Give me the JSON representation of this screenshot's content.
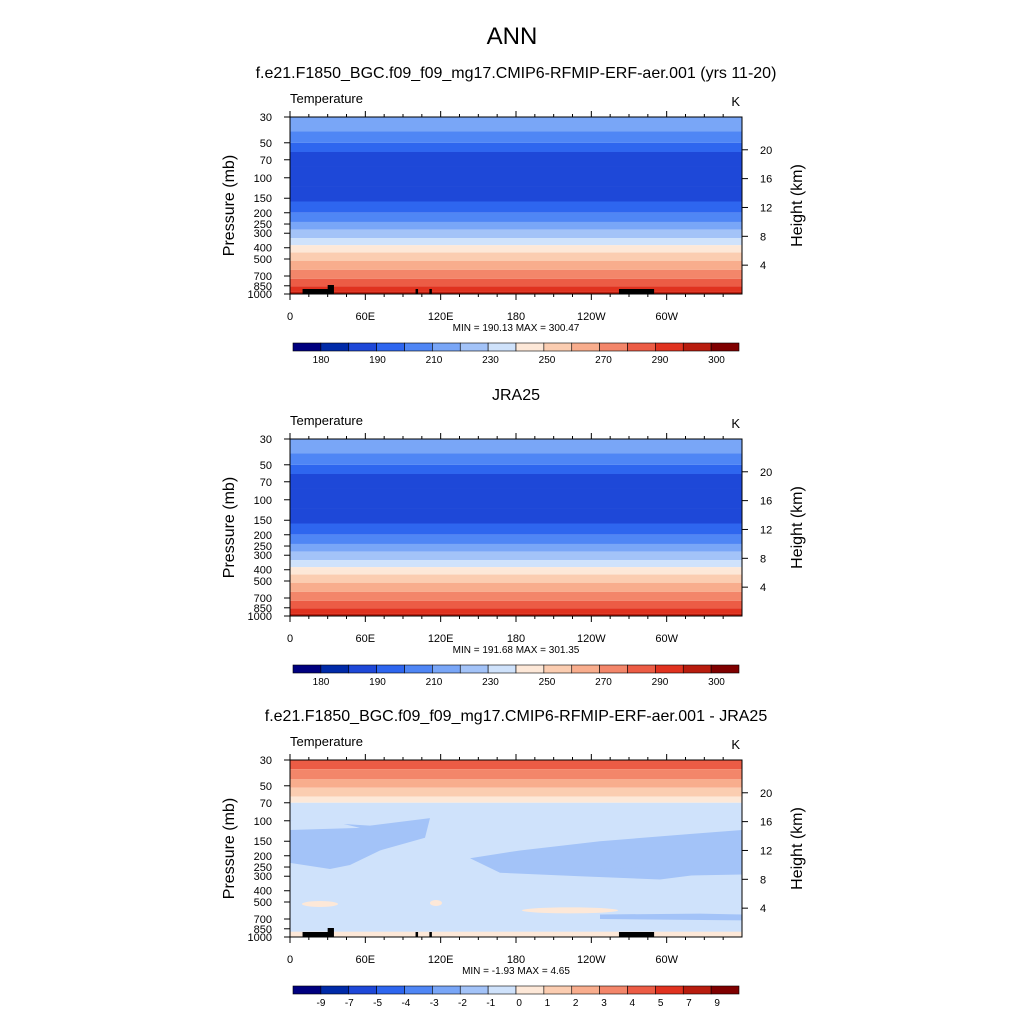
{
  "page": {
    "title": "ANN"
  },
  "colors": {
    "temp_scale": [
      "#00007f",
      "#002aa8",
      "#1e48d8",
      "#2e66ef",
      "#4f86f5",
      "#79a6f7",
      "#a3c3f8",
      "#cfe2fb",
      "#fde8d8",
      "#fbcdb1",
      "#f8ad8d",
      "#f3866a",
      "#ec5c45",
      "#e0321f",
      "#b81c0e",
      "#7f0000"
    ],
    "diff_scale": [
      "#00007f",
      "#002aa8",
      "#1e48d8",
      "#2e66ef",
      "#4f86f5",
      "#79a6f7",
      "#a3c3f8",
      "#cfe2fb",
      "#fde8d8",
      "#fbcdb1",
      "#f8ad8d",
      "#f3866a",
      "#ec5c45",
      "#e0321f",
      "#b81c0e",
      "#7f0000"
    ],
    "land": "#000000"
  },
  "chart_data": [
    {
      "type": "heatmap",
      "title": "f.e21.F1850_BGC.f09_f09_mg17.CMIP6-RFMIP-ERF-aer.001 (yrs 11-20)",
      "left_string": "Temperature",
      "right_string": "K",
      "ylabel": "Pressure (mb)",
      "ylabel_right": "Height (km)",
      "xticks": [
        "0",
        "60E",
        "120E",
        "180",
        "120W",
        "60W"
      ],
      "yticks": [
        "30",
        "50",
        "70",
        "100",
        "150",
        "200",
        "250",
        "300",
        "400",
        "500",
        "700",
        "850",
        "1000"
      ],
      "yticks_right": [
        "20",
        "16",
        "12",
        "8",
        "4"
      ],
      "stats": "MIN = 190.13  MAX = 300.47",
      "colorbar_labels": [
        "180",
        "190",
        "210",
        "230",
        "250",
        "270",
        "290",
        "300"
      ],
      "levels": [
        {
          "p": 30,
          "c": 5
        },
        {
          "p": 40,
          "c": 4
        },
        {
          "p": 50,
          "c": 3
        },
        {
          "p": 60,
          "c": 2
        },
        {
          "p": 80,
          "c": 2
        },
        {
          "p": 120,
          "c": 2
        },
        {
          "p": 160,
          "c": 3
        },
        {
          "p": 200,
          "c": 4
        },
        {
          "p": 240,
          "c": 5
        },
        {
          "p": 280,
          "c": 6
        },
        {
          "p": 330,
          "c": 7
        },
        {
          "p": 380,
          "c": 8
        },
        {
          "p": 440,
          "c": 9
        },
        {
          "p": 520,
          "c": 10
        },
        {
          "p": 620,
          "c": 11
        },
        {
          "p": 740,
          "c": 12
        },
        {
          "p": 860,
          "c": 13
        },
        {
          "p": 960,
          "c": 14
        }
      ],
      "land_blocks": [
        [
          10,
          33
        ],
        [
          30,
          35
        ],
        [
          100,
          102
        ],
        [
          111,
          113
        ],
        [
          262,
          290
        ]
      ]
    },
    {
      "type": "heatmap",
      "title": "JRA25",
      "left_string": "Temperature",
      "right_string": "K",
      "ylabel": "Pressure (mb)",
      "ylabel_right": "Height (km)",
      "xticks": [
        "0",
        "60E",
        "120E",
        "180",
        "120W",
        "60W"
      ],
      "yticks": [
        "30",
        "50",
        "70",
        "100",
        "150",
        "200",
        "250",
        "300",
        "400",
        "500",
        "700",
        "850",
        "1000"
      ],
      "yticks_right": [
        "20",
        "16",
        "12",
        "8",
        "4"
      ],
      "stats": "MIN = 191.68  MAX = 301.35",
      "colorbar_labels": [
        "180",
        "190",
        "210",
        "230",
        "250",
        "270",
        "290",
        "300"
      ],
      "levels": [
        {
          "p": 30,
          "c": 5
        },
        {
          "p": 40,
          "c": 4
        },
        {
          "p": 50,
          "c": 3
        },
        {
          "p": 60,
          "c": 2
        },
        {
          "p": 80,
          "c": 2
        },
        {
          "p": 120,
          "c": 2
        },
        {
          "p": 160,
          "c": 3
        },
        {
          "p": 200,
          "c": 4
        },
        {
          "p": 240,
          "c": 5
        },
        {
          "p": 280,
          "c": 6
        },
        {
          "p": 330,
          "c": 7
        },
        {
          "p": 380,
          "c": 8
        },
        {
          "p": 440,
          "c": 9
        },
        {
          "p": 520,
          "c": 10
        },
        {
          "p": 620,
          "c": 11
        },
        {
          "p": 740,
          "c": 12
        },
        {
          "p": 860,
          "c": 13
        },
        {
          "p": 960,
          "c": 14
        }
      ],
      "land_blocks": []
    },
    {
      "type": "heatmap",
      "title": "f.e21.F1850_BGC.f09_f09_mg17.CMIP6-RFMIP-ERF-aer.001 - JRA25",
      "left_string": "Temperature",
      "right_string": "K",
      "ylabel": "Pressure (mb)",
      "ylabel_right": "Height (km)",
      "xticks": [
        "0",
        "60E",
        "120E",
        "180",
        "120W",
        "60W"
      ],
      "yticks": [
        "30",
        "50",
        "70",
        "100",
        "150",
        "200",
        "250",
        "300",
        "400",
        "500",
        "700",
        "850",
        "1000"
      ],
      "yticks_right": [
        "20",
        "16",
        "12",
        "8",
        "4"
      ],
      "stats": "MIN = -1.93  MAX =  4.65",
      "colorbar_labels": [
        "-9",
        "-7",
        "-5",
        "-4",
        "-3",
        "-2",
        "-1",
        "0",
        "1",
        "2",
        "3",
        "4",
        "5",
        "7",
        "9"
      ],
      "levels": [
        {
          "p": 30,
          "c": 12
        },
        {
          "p": 36,
          "c": 11
        },
        {
          "p": 44,
          "c": 10
        },
        {
          "p": 52,
          "c": 9
        },
        {
          "p": 62,
          "c": 8
        },
        {
          "p": 70,
          "c": 7
        },
        {
          "p": 1000,
          "c": 7
        }
      ],
      "land_blocks": [
        [
          10,
          33
        ],
        [
          30,
          35
        ],
        [
          100,
          102
        ],
        [
          111,
          113
        ],
        [
          262,
          290
        ]
      ]
    }
  ]
}
